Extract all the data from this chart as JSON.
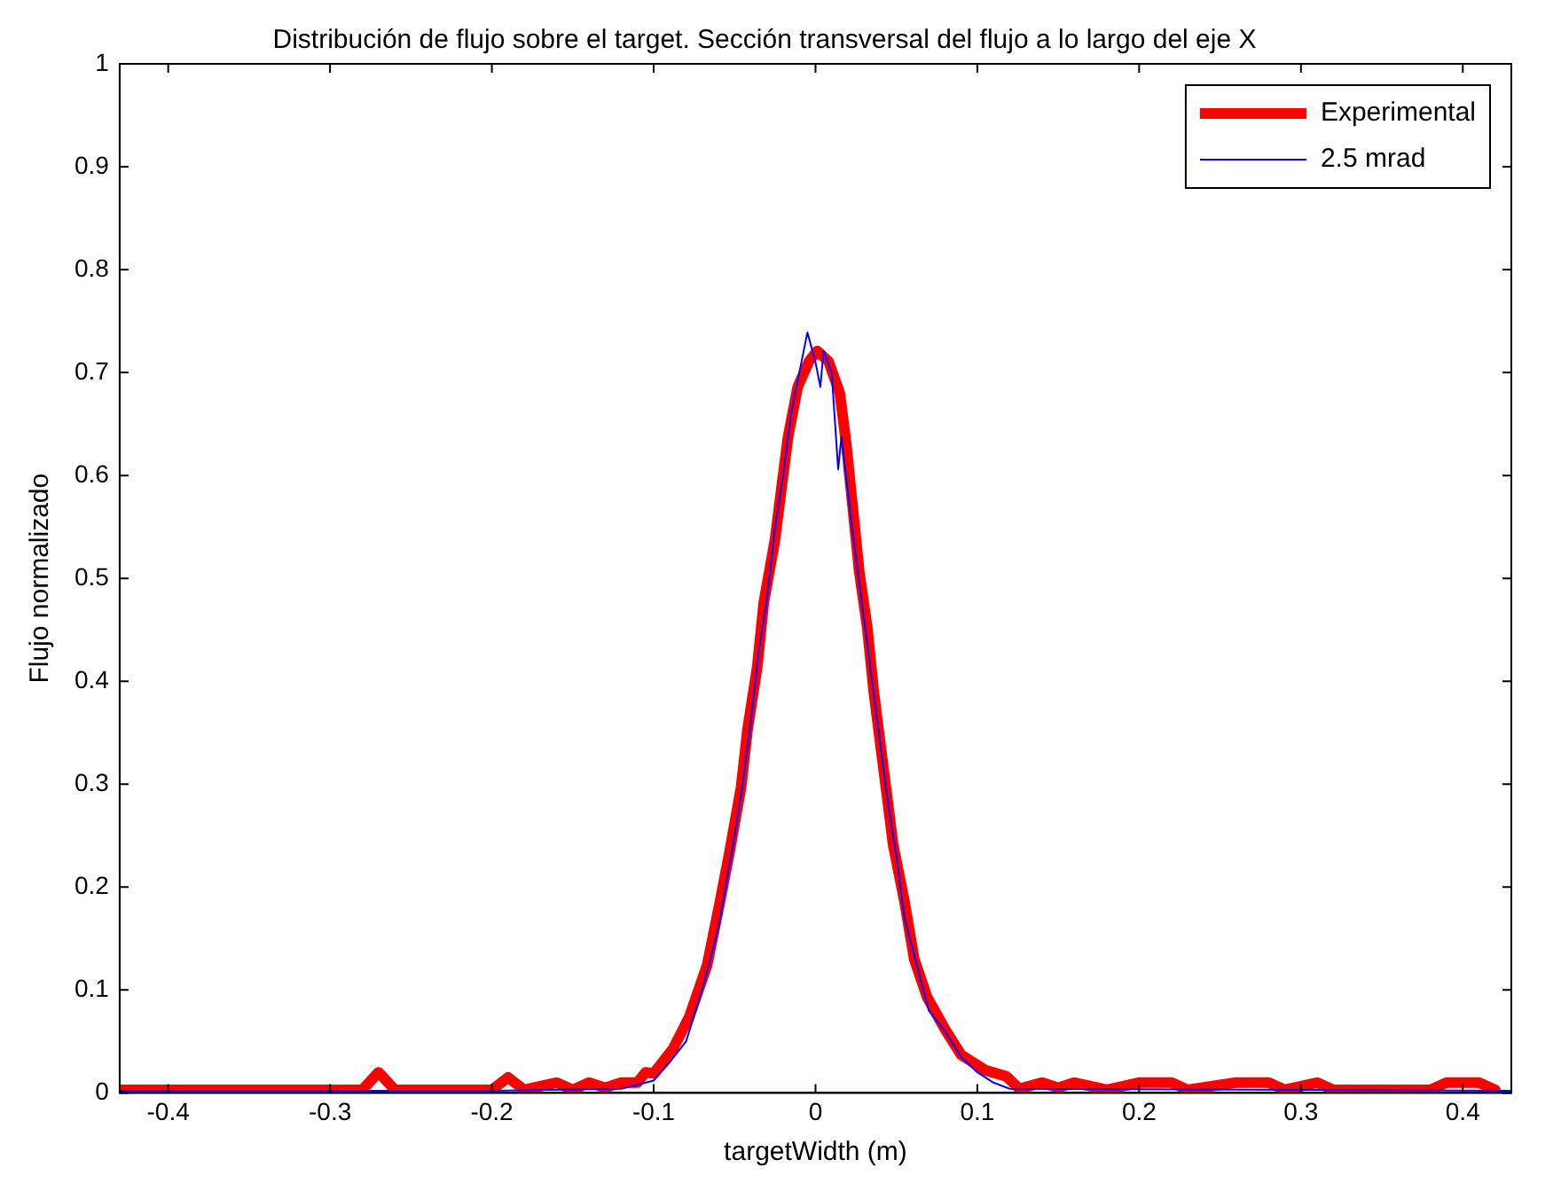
{
  "chart_data": {
    "type": "line",
    "title": "Distribución de flujo sobre el target. Sección transversal del flujo a lo largo del eje X",
    "xlabel": "targetWidth (m)",
    "ylabel": "Flujo normalizado",
    "xlim": [
      -0.43,
      0.43
    ],
    "xticks": [
      -0.4,
      -0.3,
      -0.2,
      -0.1,
      0,
      0.1,
      0.2,
      0.3,
      0.4
    ],
    "ylim": [
      0,
      1
    ],
    "yticks": [
      0,
      0.1,
      0.2,
      0.3,
      0.4,
      0.5,
      0.6,
      0.7,
      0.8,
      0.9,
      1
    ],
    "grid": false,
    "legend": "top right",
    "marker": "none",
    "line_style": "solid",
    "series": [
      {
        "name": "Experimental",
        "color": "#ff0000",
        "x": [
          -0.43,
          -0.28,
          -0.27,
          -0.26,
          -0.2,
          -0.19,
          -0.18,
          -0.16,
          -0.15,
          -0.14,
          -0.13,
          -0.12,
          -0.11,
          -0.105,
          -0.1,
          -0.088,
          -0.078,
          -0.067,
          -0.059,
          -0.053,
          -0.046,
          -0.042,
          -0.036,
          -0.032,
          -0.025,
          -0.021,
          -0.017,
          -0.011,
          -0.004,
          0.001,
          0.008,
          0.015,
          0.019,
          0.023,
          0.027,
          0.032,
          0.036,
          0.04,
          0.044,
          0.048,
          0.055,
          0.061,
          0.069,
          0.08,
          0.09,
          0.105,
          0.118,
          0.126,
          0.14,
          0.15,
          0.16,
          0.18,
          0.2,
          0.22,
          0.23,
          0.26,
          0.28,
          0.29,
          0.31,
          0.32,
          0.38,
          0.39,
          0.41,
          0.42
        ],
        "values": [
          0.003,
          0.003,
          0.02,
          0.003,
          0.003,
          0.015,
          0.003,
          0.01,
          0.003,
          0.01,
          0.005,
          0.01,
          0.01,
          0.02,
          0.019,
          0.043,
          0.074,
          0.124,
          0.186,
          0.235,
          0.297,
          0.353,
          0.414,
          0.476,
          0.538,
          0.588,
          0.637,
          0.686,
          0.711,
          0.721,
          0.711,
          0.68,
          0.631,
          0.569,
          0.507,
          0.452,
          0.39,
          0.34,
          0.291,
          0.241,
          0.186,
          0.13,
          0.093,
          0.062,
          0.037,
          0.022,
          0.016,
          0.004,
          0.01,
          0.005,
          0.01,
          0.003,
          0.01,
          0.01,
          0.003,
          0.01,
          0.01,
          0.003,
          0.01,
          0.003,
          0.003,
          0.01,
          0.01,
          0.003
        ]
      },
      {
        "name": "2.5 mrad",
        "color": "#0000ff",
        "x": [
          -0.43,
          -0.2,
          -0.12,
          -0.1,
          -0.09,
          -0.08,
          -0.07,
          -0.06,
          -0.05,
          -0.045,
          -0.04,
          -0.035,
          -0.03,
          -0.025,
          -0.02,
          -0.015,
          -0.01,
          -0.005,
          0,
          0.003,
          0.005,
          0.01,
          0.014,
          0.016,
          0.02,
          0.025,
          0.03,
          0.035,
          0.04,
          0.045,
          0.05,
          0.055,
          0.06,
          0.065,
          0.07,
          0.08,
          0.09,
          0.1,
          0.11,
          0.12,
          0.43
        ],
        "values": [
          0.002,
          0.002,
          0.004,
          0.012,
          0.03,
          0.05,
          0.1,
          0.16,
          0.25,
          0.3,
          0.36,
          0.43,
          0.48,
          0.55,
          0.6,
          0.66,
          0.7,
          0.739,
          0.71,
          0.686,
          0.721,
          0.7,
          0.606,
          0.637,
          0.584,
          0.52,
          0.46,
          0.4,
          0.34,
          0.28,
          0.23,
          0.17,
          0.14,
          0.11,
          0.08,
          0.06,
          0.035,
          0.02,
          0.01,
          0.004,
          0.002
        ]
      }
    ]
  }
}
